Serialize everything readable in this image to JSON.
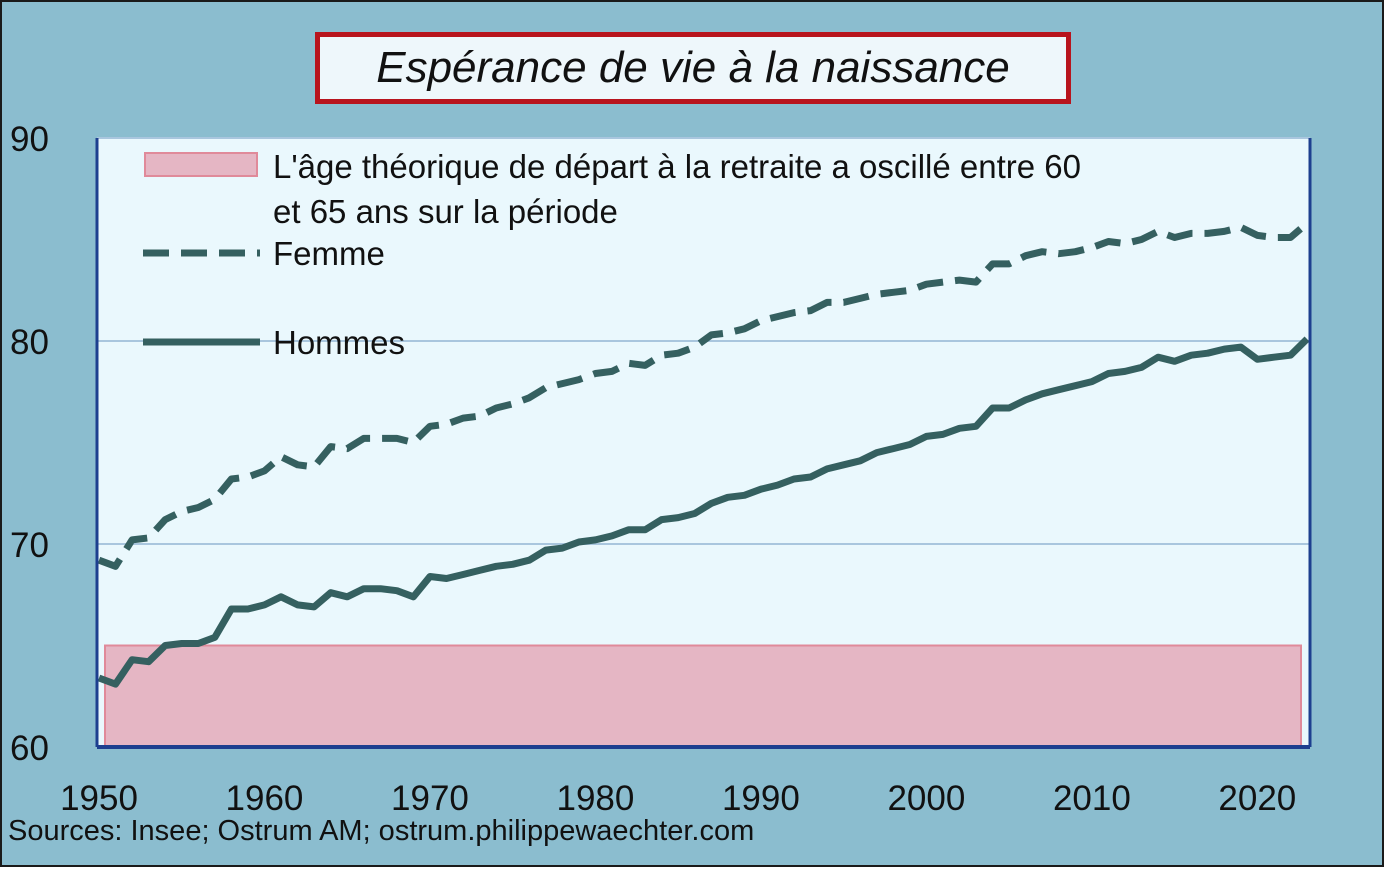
{
  "title": "Espérance de vie à la naissance",
  "source": "Sources: Insee; Ostrum AM; ostrum.philippewaechter.com",
  "colors": {
    "background": "#8bbdcf",
    "plot_background": "#eaf8fd",
    "title_border": "#b8141d",
    "series": "#356060",
    "band_fill": "#e5b6c4",
    "band_stroke": "#e08a9a",
    "axis": "#1d3f8f",
    "gridline": "#a9c6de"
  },
  "chart_data": {
    "type": "line",
    "title": "Espérance de vie à la naissance",
    "xlim": [
      1950,
      2023
    ],
    "ylim": [
      60,
      90
    ],
    "x_ticks": [
      "1950",
      "1960",
      "1970",
      "1980",
      "1990",
      "2000",
      "2010",
      "2020"
    ],
    "y_ticks": [
      "60",
      "70",
      "80",
      "90"
    ],
    "grid": "horizontal",
    "legend_position": "top-left",
    "band": {
      "label": "L'âge théorique de départ à la retraite a oscillé entre 60 et 65 ans sur la période",
      "label_lines": [
        "L'âge théorique de départ à la retraite a oscillé entre 60",
        "et 65 ans sur la période"
      ],
      "y_from": 60,
      "y_to": 65
    },
    "x": [
      1950,
      1951,
      1952,
      1953,
      1954,
      1955,
      1956,
      1957,
      1958,
      1959,
      1960,
      1961,
      1962,
      1963,
      1964,
      1965,
      1966,
      1967,
      1968,
      1969,
      1970,
      1971,
      1972,
      1973,
      1974,
      1975,
      1976,
      1977,
      1978,
      1979,
      1980,
      1981,
      1982,
      1983,
      1984,
      1985,
      1986,
      1987,
      1988,
      1989,
      1990,
      1991,
      1992,
      1993,
      1994,
      1995,
      1996,
      1997,
      1998,
      1999,
      2000,
      2001,
      2002,
      2003,
      2004,
      2005,
      2006,
      2007,
      2008,
      2009,
      2010,
      2011,
      2012,
      2013,
      2014,
      2015,
      2016,
      2017,
      2018,
      2019,
      2020,
      2021,
      2022,
      2023
    ],
    "series": [
      {
        "name": "Femme",
        "style": "dashed",
        "values": [
          69.2,
          68.9,
          70.2,
          70.3,
          71.2,
          71.6,
          71.8,
          72.2,
          73.2,
          73.3,
          73.6,
          74.3,
          73.9,
          73.8,
          74.8,
          74.7,
          75.2,
          75.2,
          75.2,
          75.0,
          75.8,
          75.9,
          76.2,
          76.3,
          76.7,
          76.9,
          77.2,
          77.7,
          77.9,
          78.1,
          78.4,
          78.5,
          78.9,
          78.8,
          79.3,
          79.4,
          79.7,
          80.3,
          80.4,
          80.6,
          81.0,
          81.2,
          81.4,
          81.5,
          81.9,
          81.9,
          82.1,
          82.3,
          82.4,
          82.5,
          82.8,
          82.9,
          83.0,
          82.9,
          83.8,
          83.8,
          84.2,
          84.4,
          84.3,
          84.4,
          84.6,
          84.9,
          84.8,
          85.0,
          85.4,
          85.1,
          85.3,
          85.3,
          85.4,
          85.6,
          85.2,
          85.1,
          85.1,
          85.8
        ]
      },
      {
        "name": "Hommes",
        "style": "solid",
        "values": [
          63.4,
          63.1,
          64.3,
          64.2,
          65.0,
          65.1,
          65.1,
          65.4,
          66.8,
          66.8,
          67.0,
          67.4,
          67.0,
          66.9,
          67.6,
          67.4,
          67.8,
          67.8,
          67.7,
          67.4,
          68.4,
          68.3,
          68.5,
          68.7,
          68.9,
          69.0,
          69.2,
          69.7,
          69.8,
          70.1,
          70.2,
          70.4,
          70.7,
          70.7,
          71.2,
          71.3,
          71.5,
          72.0,
          72.3,
          72.4,
          72.7,
          72.9,
          73.2,
          73.3,
          73.7,
          73.9,
          74.1,
          74.5,
          74.7,
          74.9,
          75.3,
          75.4,
          75.7,
          75.8,
          76.7,
          76.7,
          77.1,
          77.4,
          77.6,
          77.8,
          78.0,
          78.4,
          78.5,
          78.7,
          79.2,
          79.0,
          79.3,
          79.4,
          79.6,
          79.7,
          79.1,
          79.2,
          79.3,
          80.1
        ]
      }
    ]
  }
}
